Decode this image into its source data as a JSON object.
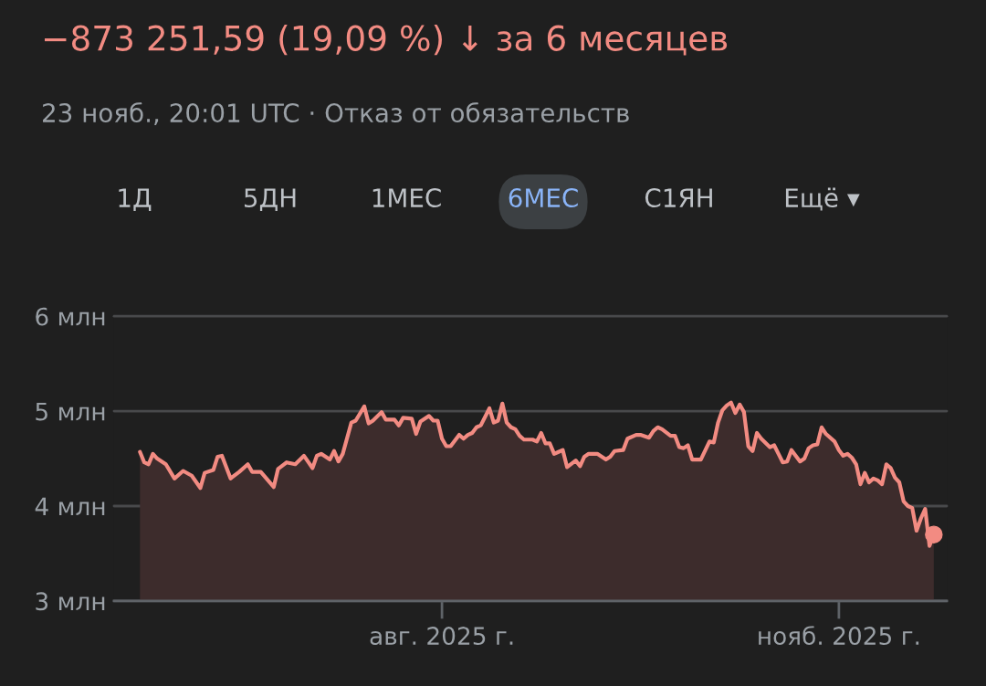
{
  "chart_data": {
    "type": "area",
    "title": "−873 251,59 (19,09 %) ↓ за 6 месяцев",
    "subtitle": "23 нояб., 20:01 UTC · Отказ от обязательств",
    "annotations": [
      "1Д",
      "5ДН",
      "1МЕС",
      "6МЕС",
      "С1ЯН",
      "Ещё ▾"
    ],
    "series": [
      {
        "color": "#f28b82",
        "x": [
          "2025-05-23",
          "2025-05-24",
          "2025-05-25",
          "2025-05-26",
          "2025-05-27",
          "2025-05-29",
          "2025-05-31",
          "2025-06-02",
          "2025-06-04",
          "2025-06-06",
          "2025-06-07",
          "2025-06-09",
          "2025-06-10",
          "2025-06-11",
          "2025-06-13",
          "2025-06-15",
          "2025-06-17",
          "2025-06-18",
          "2025-06-20",
          "2025-06-23",
          "2025-06-24",
          "2025-06-26",
          "2025-06-28",
          "2025-06-30",
          "2025-07-02",
          "2025-07-03",
          "2025-07-04",
          "2025-07-06",
          "2025-07-07",
          "2025-07-08",
          "2025-07-09",
          "2025-07-11",
          "2025-07-12",
          "2025-07-14",
          "2025-07-15",
          "2025-07-16",
          "2025-07-18",
          "2025-07-19",
          "2025-07-21",
          "2025-07-22",
          "2025-07-23",
          "2025-07-25",
          "2025-07-26",
          "2025-07-27",
          "2025-07-29",
          "2025-07-30",
          "2025-07-31",
          "2025-08-01",
          "2025-08-02",
          "2025-08-03",
          "2025-08-05",
          "2025-08-06",
          "2025-08-07",
          "2025-08-08",
          "2025-08-09",
          "2025-08-10",
          "2025-08-12",
          "2025-08-13",
          "2025-08-14",
          "2025-08-15",
          "2025-08-16",
          "2025-08-17",
          "2025-08-18",
          "2025-08-19",
          "2025-08-20",
          "2025-08-22",
          "2025-08-23",
          "2025-08-24",
          "2025-08-25",
          "2025-08-26",
          "2025-08-27",
          "2025-08-28",
          "2025-08-29",
          "2025-08-30",
          "2025-09-01",
          "2025-09-02",
          "2025-09-03",
          "2025-09-04",
          "2025-09-06",
          "2025-09-08",
          "2025-09-09",
          "2025-09-10",
          "2025-09-12",
          "2025-09-13",
          "2025-09-15",
          "2025-09-16",
          "2025-09-18",
          "2025-09-19",
          "2025-09-20",
          "2025-09-21",
          "2025-09-23",
          "2025-09-24",
          "2025-09-25",
          "2025-09-26",
          "2025-09-27",
          "2025-09-28",
          "2025-09-30",
          "2025-10-02",
          "2025-10-03",
          "2025-10-04",
          "2025-10-05",
          "2025-10-06",
          "2025-10-07",
          "2025-10-08",
          "2025-10-09",
          "2025-10-10",
          "2025-10-11",
          "2025-10-12",
          "2025-10-13",
          "2025-10-14",
          "2025-10-16",
          "2025-10-17",
          "2025-10-18",
          "2025-10-19",
          "2025-10-20",
          "2025-10-21",
          "2025-10-22",
          "2025-10-23",
          "2025-10-24",
          "2025-10-25",
          "2025-10-26",
          "2025-10-27",
          "2025-10-28",
          "2025-10-29",
          "2025-10-31",
          "2025-11-01",
          "2025-11-02",
          "2025-11-03",
          "2025-11-04",
          "2025-11-05",
          "2025-11-06",
          "2025-11-07",
          "2025-11-08",
          "2025-11-09",
          "2025-11-10",
          "2025-11-11",
          "2025-11-12",
          "2025-11-13",
          "2025-11-14",
          "2025-11-15",
          "2025-11-16",
          "2025-11-17",
          "2025-11-18",
          "2025-11-19",
          "2025-11-20",
          "2025-11-21",
          "2025-11-22",
          "2025-11-23"
        ],
        "values": [
          4.57,
          4.46,
          4.44,
          4.55,
          4.5,
          4.44,
          4.29,
          4.37,
          4.32,
          4.19,
          4.35,
          4.38,
          4.52,
          4.53,
          4.29,
          4.36,
          4.44,
          4.36,
          4.36,
          4.2,
          4.39,
          4.46,
          4.44,
          4.53,
          4.4,
          4.53,
          4.55,
          4.49,
          4.58,
          4.47,
          4.55,
          4.88,
          4.9,
          5.05,
          4.87,
          4.9,
          4.99,
          4.91,
          4.91,
          4.85,
          4.93,
          4.92,
          4.76,
          4.89,
          4.95,
          4.9,
          4.9,
          4.71,
          4.63,
          4.63,
          4.75,
          4.71,
          4.75,
          4.77,
          4.83,
          4.85,
          5.03,
          4.88,
          4.9,
          5.08,
          4.88,
          4.83,
          4.81,
          4.74,
          4.7,
          4.7,
          4.68,
          4.77,
          4.66,
          4.66,
          4.55,
          4.57,
          4.59,
          4.41,
          4.48,
          4.42,
          4.52,
          4.55,
          4.55,
          4.49,
          4.52,
          4.58,
          4.59,
          4.71,
          4.75,
          4.75,
          4.72,
          4.79,
          4.83,
          4.81,
          4.74,
          4.74,
          4.62,
          4.61,
          4.64,
          4.49,
          4.49,
          4.68,
          4.67,
          4.88,
          5.01,
          5.06,
          5.09,
          4.98,
          5.07,
          4.99,
          4.63,
          4.58,
          4.77,
          4.71,
          4.62,
          4.64,
          4.55,
          4.46,
          4.47,
          4.59,
          4.53,
          4.47,
          4.5,
          4.61,
          4.64,
          4.65,
          4.83,
          4.76,
          4.68,
          4.59,
          4.53,
          4.55,
          4.51,
          4.44,
          4.23,
          4.35,
          4.25,
          4.29,
          4.27,
          4.23,
          4.44,
          4.4,
          4.3,
          4.25,
          4.05,
          4.0,
          3.98,
          3.74,
          3.87,
          3.97,
          3.58,
          3.7
        ]
      }
    ],
    "xlim": [
      "2025-05-17",
      "2025-11-26"
    ],
    "xticks": [
      {
        "value": "2025-08-01",
        "label": "авг. 2025 г."
      },
      {
        "value": "2025-11-01",
        "label": "нояб. 2025 г."
      }
    ],
    "ylim": [
      3,
      6
    ],
    "yticks": [
      {
        "value": 3,
        "label": "3 млн"
      },
      {
        "value": 4,
        "label": "4 млн"
      },
      {
        "value": 5,
        "label": "5 млн"
      },
      {
        "value": 6,
        "label": "6 млн"
      }
    ],
    "grid": "y",
    "legend": false
  }
}
